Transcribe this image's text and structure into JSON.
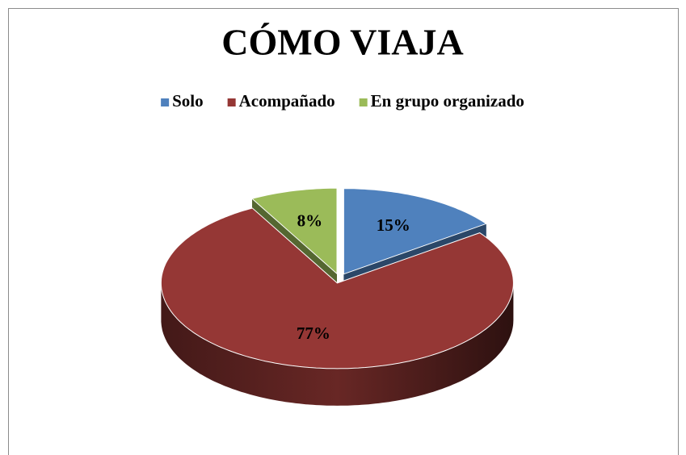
{
  "chart_data": {
    "type": "pie",
    "title": "CÓMO VIAJA",
    "categories": [
      "Solo",
      "Acompañado",
      "En grupo organizado"
    ],
    "values": [
      15,
      77,
      8
    ],
    "value_labels": [
      "15%",
      "77%",
      "8%"
    ],
    "colors": [
      "#4f81bd",
      "#953735",
      "#9bbb59"
    ],
    "legend": "top"
  }
}
